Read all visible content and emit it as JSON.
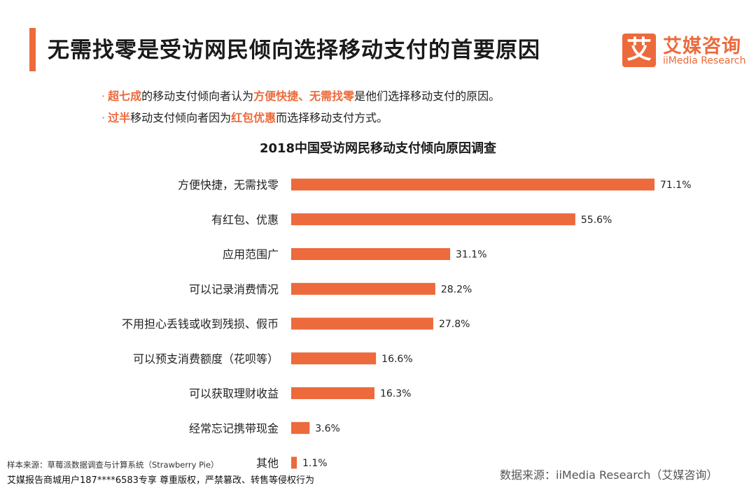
{
  "header": {
    "title": "无需找零是受访网民倾向选择移动支付的首要原因",
    "logo": {
      "icon_char": "艾",
      "name_cn": "艾媒咨询",
      "name_en": "iiMedia Research"
    }
  },
  "bullets": [
    {
      "dot": "·",
      "parts": [
        {
          "text": "超七成",
          "hl": true
        },
        {
          "text": "的移动支付倾向者认为",
          "hl": false
        },
        {
          "text": "方便快捷、无需找零",
          "hl": true
        },
        {
          "text": "是他们选择移动支付的原因。",
          "hl": false
        }
      ]
    },
    {
      "dot": "·",
      "parts": [
        {
          "text": "过半",
          "hl": true
        },
        {
          "text": "移动支付倾向者因为",
          "hl": false
        },
        {
          "text": "红包优惠",
          "hl": true
        },
        {
          "text": "而选择移动支付方式。",
          "hl": false
        }
      ]
    }
  ],
  "chart_data": {
    "type": "bar",
    "orientation": "horizontal",
    "title": "2018中国受访网民移动支付倾向原因调查",
    "categories": [
      "方便快捷，无需找零",
      "有红包、优惠",
      "应用范围广",
      "可以记录消费情况",
      "不用担心丢钱或收到残损、假币",
      "可以预支消费额度（花呗等）",
      "可以获取理财收益",
      "经常忘记携带现金",
      "其他"
    ],
    "values": [
      71.1,
      55.6,
      31.1,
      28.2,
      27.8,
      16.6,
      16.3,
      3.6,
      1.1
    ],
    "value_suffix": "%",
    "bar_color": "#ec6a3c",
    "grid": false,
    "legend": "none"
  },
  "footer": {
    "sample": "样本来源：草莓派数据调查与计算系统（Strawberry Pie）",
    "copyright": "艾媒报告商城用户187****6583专享 尊重版权，严禁篡改、转售等侵权行为",
    "source": "数据来源：iiMedia Research（艾媒咨询）"
  }
}
